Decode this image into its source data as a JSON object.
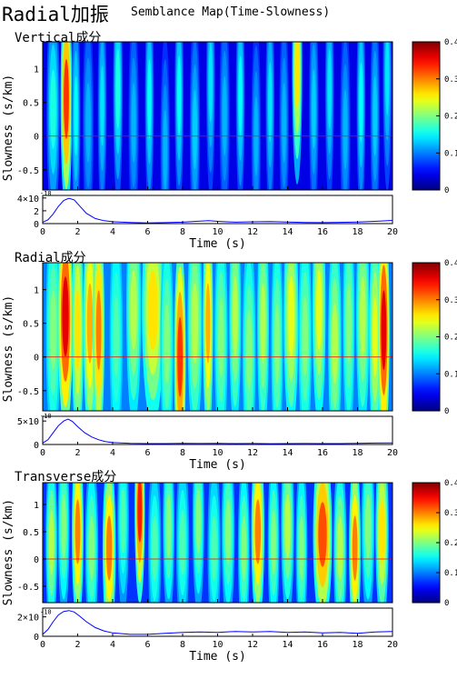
{
  "header": {
    "title": "Radial加振",
    "subtitle": "Semblance Map(Time-Slowness)"
  },
  "chart_data": [
    {
      "type": "heatmap",
      "title": "Vertical成分",
      "xlabel": "",
      "ylabel": "Slowness (s/km)",
      "xlim": [
        0,
        20
      ],
      "ylim": [
        -0.8,
        1.4
      ],
      "yticks": [
        "-0.5",
        "0",
        "0.5",
        "1"
      ],
      "yticks_values": [
        -0.5,
        0,
        0.5,
        1
      ],
      "reference_line": 0,
      "colorbar": {
        "ticks": [
          "0",
          "0.1",
          "0.2",
          "0.3",
          "0.4"
        ],
        "range": [
          0,
          0.4
        ]
      },
      "colormap": "jet",
      "background_value": 0.04,
      "bands": [
        {
          "t": 0.6,
          "s": 0.4,
          "v": 0.16,
          "w": 0.18
        },
        {
          "t": 1.35,
          "s": 0.55,
          "v": 0.33,
          "w": 0.16
        },
        {
          "t": 1.9,
          "s": 0.3,
          "v": 0.15,
          "w": 0.12
        },
        {
          "t": 2.6,
          "s": 0.2,
          "v": 0.12,
          "w": 0.15
        },
        {
          "t": 3.4,
          "s": 0.45,
          "v": 0.14,
          "w": 0.12
        },
        {
          "t": 4.3,
          "s": 0.7,
          "v": 0.16,
          "w": 0.13
        },
        {
          "t": 5.2,
          "s": 0.2,
          "v": 0.12,
          "w": 0.14
        },
        {
          "t": 6.1,
          "s": 0.55,
          "v": 0.15,
          "w": 0.12
        },
        {
          "t": 7.0,
          "s": -0.2,
          "v": 0.12,
          "w": 0.13
        },
        {
          "t": 7.8,
          "s": 0.6,
          "v": 0.15,
          "w": 0.12
        },
        {
          "t": 8.7,
          "s": 0.1,
          "v": 0.13,
          "w": 0.14
        },
        {
          "t": 9.6,
          "s": 0.8,
          "v": 0.14,
          "w": 0.12
        },
        {
          "t": 10.4,
          "s": 0.3,
          "v": 0.12,
          "w": 0.14
        },
        {
          "t": 11.3,
          "s": 0.6,
          "v": 0.15,
          "w": 0.12
        },
        {
          "t": 12.2,
          "s": 0.0,
          "v": 0.12,
          "w": 0.13
        },
        {
          "t": 13.0,
          "s": 0.5,
          "v": 0.14,
          "w": 0.12
        },
        {
          "t": 13.8,
          "s": 0.2,
          "v": 0.12,
          "w": 0.13
        },
        {
          "t": 14.55,
          "s": 1.0,
          "v": 0.26,
          "w": 0.14
        },
        {
          "t": 15.5,
          "s": 0.4,
          "v": 0.13,
          "w": 0.13
        },
        {
          "t": 16.4,
          "s": 0.7,
          "v": 0.14,
          "w": 0.12
        },
        {
          "t": 17.3,
          "s": 0.1,
          "v": 0.12,
          "w": 0.14
        },
        {
          "t": 18.2,
          "s": 0.5,
          "v": 0.15,
          "w": 0.12
        },
        {
          "t": 19.0,
          "s": 0.3,
          "v": 0.13,
          "w": 0.13
        },
        {
          "t": 19.7,
          "s": 0.9,
          "v": 0.14,
          "w": 0.12
        }
      ],
      "trace": {
        "ymax_label": "4",
        "exponent": "-10",
        "yticks": [
          "0",
          "2",
          "4"
        ],
        "yticks_values": [
          0,
          2,
          4
        ],
        "ylim": [
          0,
          4.4
        ],
        "xticks": [
          "0",
          "2",
          "4",
          "6",
          "8",
          "10",
          "12",
          "14",
          "16",
          "18",
          "20"
        ],
        "xlabel": "Time (s)",
        "t": [
          0,
          0.3,
          0.6,
          0.9,
          1.2,
          1.5,
          1.8,
          2.1,
          2.5,
          3.0,
          3.5,
          4.0,
          5.0,
          6.0,
          7.0,
          8.0,
          9.0,
          9.5,
          10.0,
          11.0,
          12.0,
          13.0,
          14.0,
          15.0,
          16.0,
          17.0,
          18.0,
          19.0,
          20.0
        ],
        "y": [
          0.2,
          0.6,
          1.5,
          2.7,
          3.6,
          3.95,
          3.7,
          2.8,
          1.6,
          0.8,
          0.45,
          0.3,
          0.18,
          0.12,
          0.15,
          0.22,
          0.38,
          0.45,
          0.35,
          0.22,
          0.28,
          0.32,
          0.25,
          0.18,
          0.15,
          0.2,
          0.25,
          0.35,
          0.5
        ]
      }
    },
    {
      "type": "heatmap",
      "title": "Radial成分",
      "xlabel": "",
      "ylabel": "Slowness (s/km)",
      "xlim": [
        0,
        20
      ],
      "ylim": [
        -0.8,
        1.4
      ],
      "yticks": [
        "-0.5",
        "0",
        "0.5",
        "1"
      ],
      "yticks_values": [
        -0.5,
        0,
        0.5,
        1
      ],
      "reference_line": 0,
      "colorbar": {
        "ticks": [
          "0",
          "0.1",
          "0.2",
          "0.3",
          "0.4"
        ],
        "range": [
          0,
          0.4
        ]
      },
      "colormap": "jet",
      "background_value": 0.1,
      "bands": [
        {
          "t": 0.6,
          "s": 0.4,
          "v": 0.2,
          "w": 0.2
        },
        {
          "t": 1.3,
          "s": 0.6,
          "v": 0.36,
          "w": 0.2
        },
        {
          "t": 2.0,
          "s": 0.4,
          "v": 0.26,
          "w": 0.16
        },
        {
          "t": 2.7,
          "s": 0.5,
          "v": 0.28,
          "w": 0.18
        },
        {
          "t": 3.2,
          "s": 0.4,
          "v": 0.3,
          "w": 0.16
        },
        {
          "t": 4.2,
          "s": 0.3,
          "v": 0.18,
          "w": 0.18
        },
        {
          "t": 5.2,
          "s": 0.7,
          "v": 0.22,
          "w": 0.2
        },
        {
          "t": 6.3,
          "s": 0.7,
          "v": 0.26,
          "w": 0.3
        },
        {
          "t": 7.1,
          "s": 0.2,
          "v": 0.2,
          "w": 0.18
        },
        {
          "t": 7.85,
          "s": 0.0,
          "v": 0.33,
          "w": 0.16
        },
        {
          "t": 8.7,
          "s": 0.5,
          "v": 0.22,
          "w": 0.2
        },
        {
          "t": 9.45,
          "s": 0.5,
          "v": 0.28,
          "w": 0.14
        },
        {
          "t": 10.2,
          "s": 0.3,
          "v": 0.2,
          "w": 0.18
        },
        {
          "t": 11.0,
          "s": 0.6,
          "v": 0.22,
          "w": 0.16
        },
        {
          "t": 11.8,
          "s": 0.1,
          "v": 0.2,
          "w": 0.18
        },
        {
          "t": 12.6,
          "s": 0.5,
          "v": 0.22,
          "w": 0.16
        },
        {
          "t": 13.4,
          "s": 0.2,
          "v": 0.2,
          "w": 0.16
        },
        {
          "t": 14.2,
          "s": 0.6,
          "v": 0.24,
          "w": 0.2
        },
        {
          "t": 15.0,
          "s": 0.3,
          "v": 0.2,
          "w": 0.18
        },
        {
          "t": 15.8,
          "s": 0.7,
          "v": 0.24,
          "w": 0.18
        },
        {
          "t": 16.7,
          "s": 0.2,
          "v": 0.22,
          "w": 0.18
        },
        {
          "t": 17.5,
          "s": 0.5,
          "v": 0.2,
          "w": 0.16
        },
        {
          "t": 18.3,
          "s": 0.6,
          "v": 0.22,
          "w": 0.18
        },
        {
          "t": 19.0,
          "s": 0.3,
          "v": 0.24,
          "w": 0.16
        },
        {
          "t": 19.5,
          "s": 0.4,
          "v": 0.36,
          "w": 0.16
        }
      ],
      "trace": {
        "ymax_label": "5",
        "exponent": "-10",
        "yticks": [
          "0",
          "5"
        ],
        "yticks_values": [
          0,
          5
        ],
        "ylim": [
          0,
          6
        ],
        "xticks": [
          "0",
          "2",
          "4",
          "6",
          "8",
          "10",
          "12",
          "14",
          "16",
          "18",
          "20"
        ],
        "xlabel": "Time (s)",
        "t": [
          0,
          0.3,
          0.6,
          0.9,
          1.2,
          1.45,
          1.7,
          2.0,
          2.4,
          2.8,
          3.2,
          3.6,
          4.0,
          5.0,
          6.0,
          7.0,
          8.0,
          9.0,
          10.0,
          11.0,
          12.0,
          13.0,
          14.0,
          15.0,
          16.0,
          17.0,
          18.0,
          19.0,
          20.0
        ],
        "y": [
          0.3,
          1.0,
          2.5,
          4.0,
          5.0,
          5.4,
          4.9,
          3.8,
          2.5,
          1.6,
          1.0,
          0.6,
          0.4,
          0.25,
          0.2,
          0.2,
          0.25,
          0.22,
          0.25,
          0.2,
          0.22,
          0.18,
          0.2,
          0.22,
          0.2,
          0.2,
          0.25,
          0.3,
          0.35
        ]
      }
    },
    {
      "type": "heatmap",
      "title": "Transverse成分",
      "xlabel": "",
      "ylabel": "Slowness (s/km)",
      "xlim": [
        0,
        20
      ],
      "ylim": [
        -0.8,
        1.4
      ],
      "yticks": [
        "-0.5",
        "0",
        "0.5",
        "1"
      ],
      "yticks_values": [
        -0.5,
        0,
        0.5,
        1
      ],
      "reference_line": 0,
      "colorbar": {
        "ticks": [
          "0",
          "0.1",
          "0.2",
          "0.3",
          "0.4"
        ],
        "range": [
          0,
          0.4
        ]
      },
      "colormap": "jet",
      "background_value": 0.07,
      "bands": [
        {
          "t": 0.5,
          "s": 0.3,
          "v": 0.22,
          "w": 0.16
        },
        {
          "t": 1.2,
          "s": 0.6,
          "v": 0.2,
          "w": 0.16
        },
        {
          "t": 2.0,
          "s": 0.5,
          "v": 0.3,
          "w": 0.16
        },
        {
          "t": 2.8,
          "s": 0.2,
          "v": 0.2,
          "w": 0.18
        },
        {
          "t": 3.8,
          "s": 0.2,
          "v": 0.3,
          "w": 0.18
        },
        {
          "t": 4.6,
          "s": 0.7,
          "v": 0.18,
          "w": 0.16
        },
        {
          "t": 5.55,
          "s": 0.9,
          "v": 0.34,
          "w": 0.14
        },
        {
          "t": 6.4,
          "s": 0.2,
          "v": 0.18,
          "w": 0.18
        },
        {
          "t": 7.2,
          "s": 0.6,
          "v": 0.2,
          "w": 0.16
        },
        {
          "t": 8.0,
          "s": 0.3,
          "v": 0.18,
          "w": 0.18
        },
        {
          "t": 8.9,
          "s": 0.7,
          "v": 0.2,
          "w": 0.16
        },
        {
          "t": 9.8,
          "s": 0.2,
          "v": 0.18,
          "w": 0.18
        },
        {
          "t": 10.6,
          "s": 0.5,
          "v": 0.2,
          "w": 0.18
        },
        {
          "t": 11.5,
          "s": 0.2,
          "v": 0.2,
          "w": 0.16
        },
        {
          "t": 12.3,
          "s": 0.5,
          "v": 0.3,
          "w": 0.18
        },
        {
          "t": 13.2,
          "s": 0.3,
          "v": 0.2,
          "w": 0.16
        },
        {
          "t": 14.0,
          "s": 0.6,
          "v": 0.22,
          "w": 0.18
        },
        {
          "t": 14.8,
          "s": 0.2,
          "v": 0.2,
          "w": 0.16
        },
        {
          "t": 16.0,
          "s": 0.45,
          "v": 0.32,
          "w": 0.26
        },
        {
          "t": 17.0,
          "s": 0.2,
          "v": 0.22,
          "w": 0.18
        },
        {
          "t": 17.85,
          "s": 0.2,
          "v": 0.3,
          "w": 0.16
        },
        {
          "t": 18.6,
          "s": 0.6,
          "v": 0.2,
          "w": 0.18
        },
        {
          "t": 19.4,
          "s": 0.5,
          "v": 0.26,
          "w": 0.18
        }
      ],
      "trace": {
        "ymax_label": "2",
        "exponent": "-10",
        "yticks": [
          "0",
          "2"
        ],
        "yticks_values": [
          0,
          2
        ],
        "ylim": [
          0,
          2.9
        ],
        "xticks": [
          "0",
          "2",
          "4",
          "6",
          "8",
          "10",
          "12",
          "14",
          "16",
          "18",
          "20"
        ],
        "xlabel": "Time (s)",
        "t": [
          0,
          0.3,
          0.6,
          0.9,
          1.2,
          1.5,
          1.8,
          2.1,
          2.5,
          3.0,
          3.5,
          4.0,
          5.0,
          6.0,
          7.0,
          8.0,
          9.0,
          10.0,
          11.0,
          12.0,
          13.0,
          14.0,
          15.0,
          16.0,
          17.0,
          18.0,
          19.0,
          20.0
        ],
        "y": [
          0.2,
          0.7,
          1.5,
          2.2,
          2.55,
          2.65,
          2.5,
          2.1,
          1.5,
          0.9,
          0.55,
          0.35,
          0.2,
          0.2,
          0.3,
          0.4,
          0.45,
          0.4,
          0.5,
          0.45,
          0.5,
          0.4,
          0.45,
          0.35,
          0.4,
          0.3,
          0.45,
          0.5
        ]
      }
    }
  ]
}
